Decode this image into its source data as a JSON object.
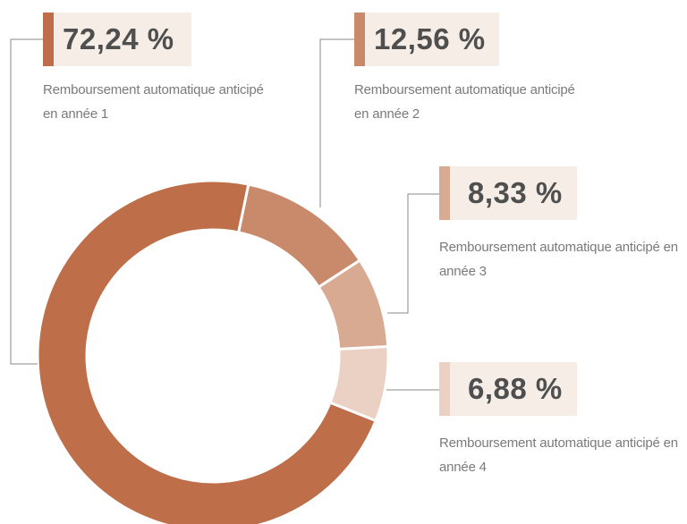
{
  "chart_data": {
    "type": "donut",
    "categories": [
      "Remboursement automatique anticipé en année 1",
      "Remboursement automatique anticipé en année 2",
      "Remboursement automatique anticipé en année 3",
      "Remboursement automatique anticipé en année 4"
    ],
    "values": [
      72.24,
      12.56,
      8.33,
      6.88
    ],
    "value_labels": [
      "72,24 %",
      "12,56 %",
      "8,33 %",
      "6,88 %"
    ],
    "colors": [
      "#bf6e4a",
      "#c98a6b",
      "#d9aa92",
      "#ebd1c3"
    ]
  }
}
